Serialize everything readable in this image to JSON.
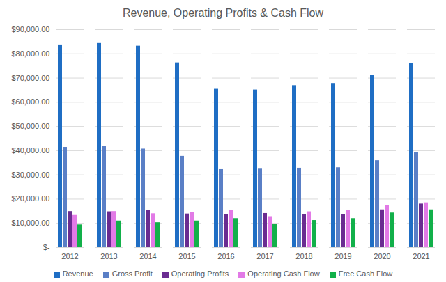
{
  "chart_data": {
    "type": "bar",
    "title": "Revenue, Operating Profits & Cash Flow",
    "categories": [
      "2012",
      "2013",
      "2014",
      "2015",
      "2016",
      "2017",
      "2018",
      "2019",
      "2020",
      "2021"
    ],
    "series": [
      {
        "name": "Revenue",
        "color": "#1f6ec4",
        "values": [
          83700,
          84300,
          83200,
          76300,
          65400,
          65100,
          66900,
          67800,
          71100,
          76200
        ]
      },
      {
        "name": "Gross Profit",
        "color": "#5a7fc6",
        "values": [
          41400,
          41800,
          40700,
          37700,
          32500,
          32700,
          32800,
          33000,
          35900,
          39100
        ]
      },
      {
        "name": "Operating Profits",
        "color": "#6a2c91",
        "values": [
          14900,
          14800,
          15400,
          13900,
          13600,
          14100,
          13800,
          13800,
          15600,
          18000
        ]
      },
      {
        "name": "Operating Cash Flow",
        "color": "#e27ae6",
        "values": [
          13300,
          14900,
          14000,
          14600,
          15400,
          12800,
          14800,
          15400,
          17400,
          18500
        ]
      },
      {
        "name": "Free Cash Flow",
        "color": "#12b04a",
        "values": [
          9400,
          11000,
          10300,
          11000,
          12000,
          9500,
          11200,
          12000,
          14300,
          15600
        ]
      }
    ],
    "ylim": [
      0,
      90000
    ],
    "yticks": [
      {
        "value": 0,
        "label": "$-"
      },
      {
        "value": 10000,
        "label": "$10,000.00"
      },
      {
        "value": 20000,
        "label": "$20,000.00"
      },
      {
        "value": 30000,
        "label": "$30,000.00"
      },
      {
        "value": 40000,
        "label": "$40,000.00"
      },
      {
        "value": 50000,
        "label": "$50,000.00"
      },
      {
        "value": 60000,
        "label": "$60,000.00"
      },
      {
        "value": 70000,
        "label": "$70,000.00"
      },
      {
        "value": 80000,
        "label": "$80,000.00"
      },
      {
        "value": 90000,
        "label": "$90,000.00"
      }
    ],
    "grid": true,
    "legend": "bottom"
  }
}
